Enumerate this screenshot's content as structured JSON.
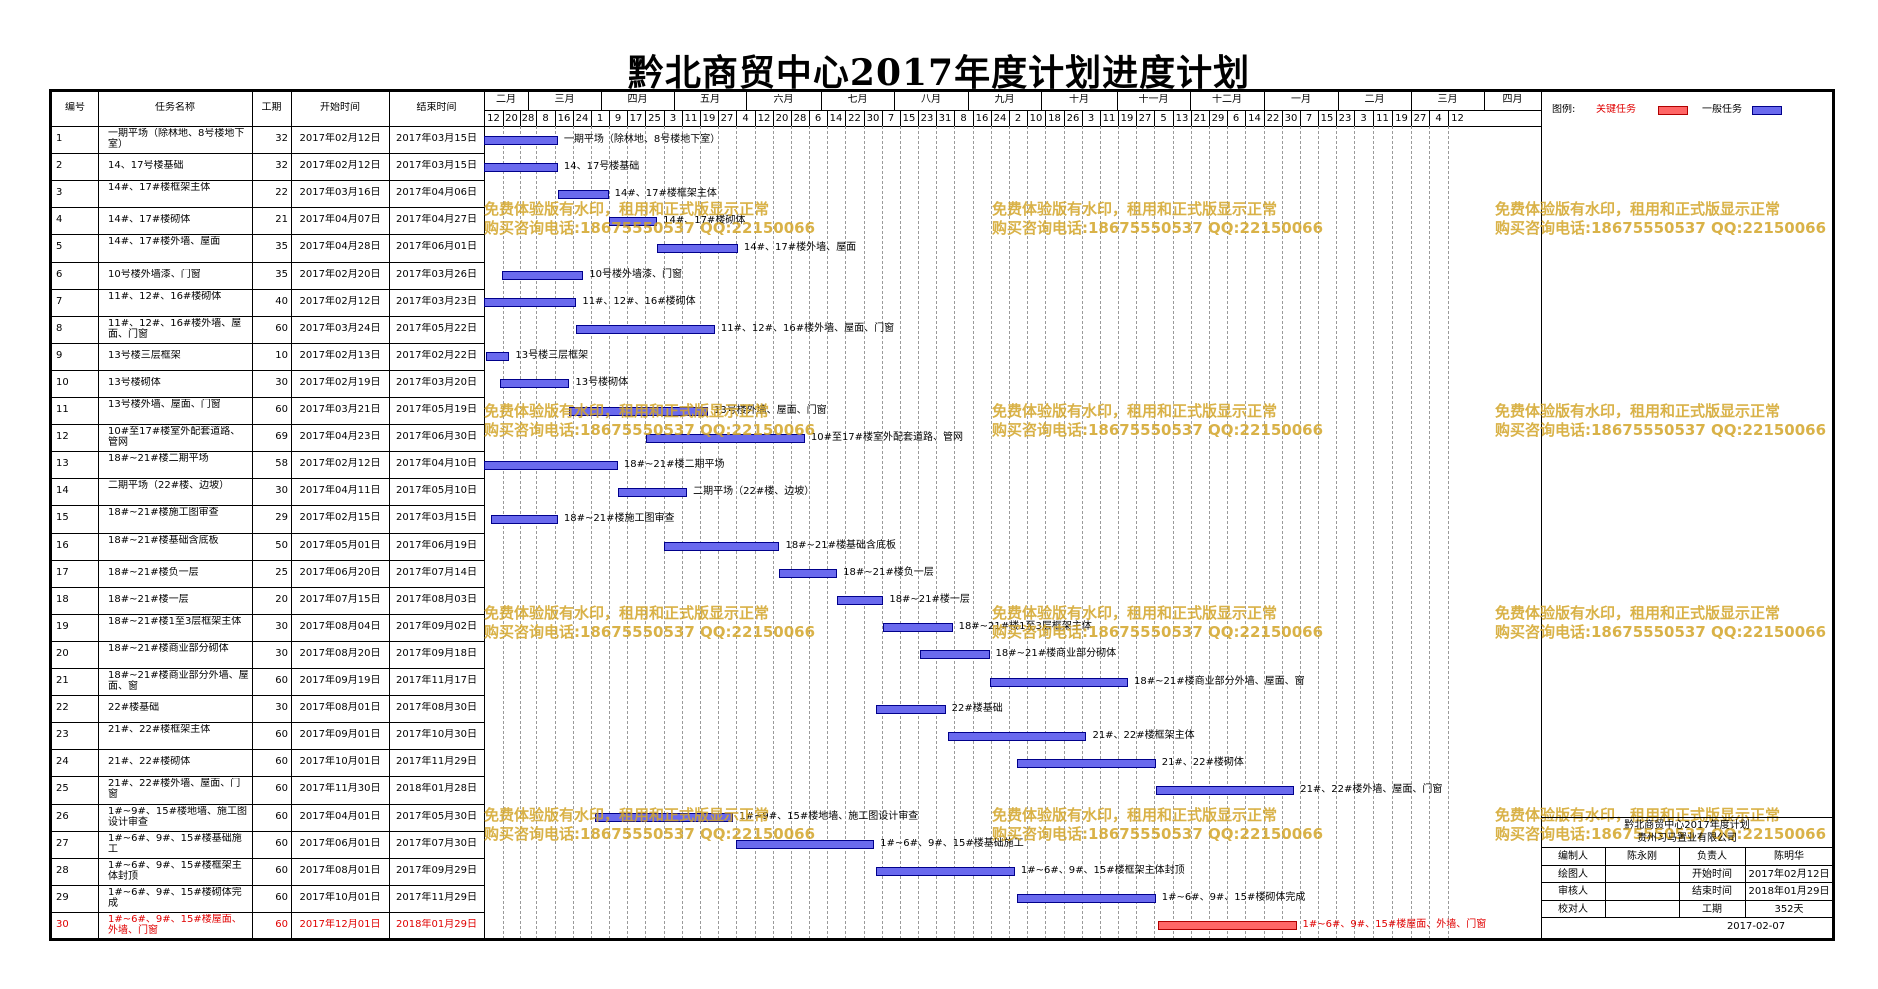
{
  "title": "黔北商贸中心2017年度计划进度计划",
  "table": {
    "headers": {
      "no": "编号",
      "name": "任务名称",
      "days": "工期",
      "start": "开始时间",
      "end": "结束时间"
    }
  },
  "timeline": {
    "months": [
      "二月",
      "三月",
      "四月",
      "五月",
      "六月",
      "七月",
      "八月",
      "九月",
      "十月",
      "十一月",
      "十二月",
      "一月",
      "二月",
      "三月",
      "四月"
    ],
    "days": [
      "12",
      "20",
      "28",
      "8",
      "16",
      "24",
      "1",
      "9",
      "17",
      "25",
      "3",
      "11",
      "19",
      "27",
      "4",
      "12",
      "20",
      "28",
      "6",
      "14",
      "22",
      "30",
      "7",
      "15",
      "23",
      "31",
      "8",
      "16",
      "24",
      "2",
      "10",
      "18",
      "26",
      "3",
      "11",
      "19",
      "27",
      "5",
      "13",
      "21",
      "29",
      "6",
      "14",
      "22",
      "30",
      "7",
      "15",
      "23",
      "3",
      "11",
      "19",
      "27",
      "4",
      "12"
    ]
  },
  "legend": {
    "label": "图例:",
    "critical": "关键任务",
    "normal": "一般任务",
    "critical_color": "#ff6666",
    "normal_color": "#6a6aee"
  },
  "watermark": {
    "line1": "免费体验版有水印，租用和正式版显示正常",
    "line2": "购买咨询电话:18675550537 QQ:22150066"
  },
  "title_block": {
    "project": "黔北商贸中心2017年度计划",
    "company": "贵州习马置业有限公司",
    "rows": [
      {
        "l1": "编制人",
        "v1": "陈永刚",
        "l2": "负责人",
        "v2": "陈明华"
      },
      {
        "l1": "绘图人",
        "v1": "",
        "l2": "开始时间",
        "v2": "2017年02月12日"
      },
      {
        "l1": "审核人",
        "v1": "",
        "l2": "结束时间",
        "v2": "2018年01月29日"
      },
      {
        "l1": "校对人",
        "v1": "",
        "l2": "工期",
        "v2": "352天"
      }
    ],
    "date": "2017-02-07"
  },
  "chart_data": {
    "type": "gantt",
    "title": "黔北商贸中心2017年度计划进度计划",
    "x_start": "2017-02-12",
    "tasks": [
      {
        "no": "1",
        "name": "一期平场（除林地、8号楼地下室）",
        "bar_label": "一期平场（除林地、8号楼地下室）",
        "days": 32,
        "start": "2017年02月12日",
        "end": "2017年03月15日",
        "critical": false
      },
      {
        "no": "2",
        "name": "14、17号楼基础",
        "bar_label": "14、17号楼基础",
        "days": 32,
        "start": "2017年02月12日",
        "end": "2017年03月15日",
        "critical": false
      },
      {
        "no": "3",
        "name": "14#、17#楼框架主体",
        "bar_label": "14#、17#楼框架主体",
        "days": 22,
        "start": "2017年03月16日",
        "end": "2017年04月06日",
        "critical": false
      },
      {
        "no": "4",
        "name": "14#、17#楼砌体",
        "bar_label": "14#、17#楼砌体",
        "days": 21,
        "start": "2017年04月07日",
        "end": "2017年04月27日",
        "critical": false
      },
      {
        "no": "5",
        "name": "14#、17#楼外墙、屋面",
        "bar_label": "14#、17#楼外墙、屋面",
        "days": 35,
        "start": "2017年04月28日",
        "end": "2017年06月01日",
        "critical": false
      },
      {
        "no": "6",
        "name": "10号楼外墙漆、门窗",
        "bar_label": "10号楼外墙漆、门窗",
        "days": 35,
        "start": "2017年02月20日",
        "end": "2017年03月26日",
        "critical": false
      },
      {
        "no": "7",
        "name": "11#、12#、16#楼砌体",
        "bar_label": "11#、12#、16#楼砌体",
        "days": 40,
        "start": "2017年02月12日",
        "end": "2017年03月23日",
        "critical": false
      },
      {
        "no": "8",
        "name": "11#、12#、16#楼外墙、屋面、门窗",
        "bar_label": "11#、12#、16#楼外墙、屋面、门窗",
        "days": 60,
        "start": "2017年03月24日",
        "end": "2017年05月22日",
        "critical": false
      },
      {
        "no": "9",
        "name": "13号楼三层框架",
        "bar_label": "13号楼三层框架",
        "days": 10,
        "start": "2017年02月13日",
        "end": "2017年02月22日",
        "critical": false
      },
      {
        "no": "10",
        "name": "13号楼砌体",
        "bar_label": "13号楼砌体",
        "days": 30,
        "start": "2017年02月19日",
        "end": "2017年03月20日",
        "critical": false
      },
      {
        "no": "11",
        "name": "13号楼外墙、屋面、门窗",
        "bar_label": "13号楼外墙、屋面、门窗",
        "days": 60,
        "start": "2017年03月21日",
        "end": "2017年05月19日",
        "critical": false
      },
      {
        "no": "12",
        "name": "10#至17#楼室外配套道路、管网",
        "bar_label": "10#至17#楼室外配套道路、管网",
        "days": 69,
        "start": "2017年04月23日",
        "end": "2017年06月30日",
        "critical": false
      },
      {
        "no": "13",
        "name": "18#~21#楼二期平场",
        "bar_label": "18#~21#楼二期平场",
        "days": 58,
        "start": "2017年02月12日",
        "end": "2017年04月10日",
        "critical": false
      },
      {
        "no": "14",
        "name": "二期平场（22#楼、边坡）",
        "bar_label": "二期平场（22#楼、边坡）",
        "days": 30,
        "start": "2017年04月11日",
        "end": "2017年05月10日",
        "critical": false
      },
      {
        "no": "15",
        "name": "18#~21#楼施工图审查",
        "bar_label": "18#~21#楼施工图审查",
        "days": 29,
        "start": "2017年02月15日",
        "end": "2017年03月15日",
        "critical": false
      },
      {
        "no": "16",
        "name": "18#~21#楼基础含底板",
        "bar_label": "18#~21#楼基础含底板",
        "days": 50,
        "start": "2017年05月01日",
        "end": "2017年06月19日",
        "critical": false
      },
      {
        "no": "17",
        "name": "18#~21#楼负一层",
        "bar_label": "18#~21#楼负一层",
        "days": 25,
        "start": "2017年06月20日",
        "end": "2017年07月14日",
        "critical": false
      },
      {
        "no": "18",
        "name": "18#~21#楼一层",
        "bar_label": "18#~21#楼一层",
        "days": 20,
        "start": "2017年07月15日",
        "end": "2017年08月03日",
        "critical": false
      },
      {
        "no": "19",
        "name": "18#~21#楼1至3层框架主体",
        "bar_label": "18#~21#楼1至3层框架主体",
        "days": 30,
        "start": "2017年08月04日",
        "end": "2017年09月02日",
        "critical": false
      },
      {
        "no": "20",
        "name": "18#~21#楼商业部分砌体",
        "bar_label": "18#~21#楼商业部分砌体",
        "days": 30,
        "start": "2017年08月20日",
        "end": "2017年09月18日",
        "critical": false
      },
      {
        "no": "21",
        "name": "18#~21#楼商业部分外墙、屋面、窗",
        "bar_label": "18#~21#楼商业部分外墙、屋面、窗",
        "days": 60,
        "start": "2017年09月19日",
        "end": "2017年11月17日",
        "critical": false
      },
      {
        "no": "22",
        "name": "22#楼基础",
        "bar_label": "22#楼基础",
        "days": 30,
        "start": "2017年08月01日",
        "end": "2017年08月30日",
        "critical": false
      },
      {
        "no": "23",
        "name": "21#、22#楼框架主体",
        "bar_label": "21#、22#楼框架主体",
        "days": 60,
        "start": "2017年09月01日",
        "end": "2017年10月30日",
        "critical": false
      },
      {
        "no": "24",
        "name": "21#、22#楼砌体",
        "bar_label": "21#、22#楼砌体",
        "days": 60,
        "start": "2017年10月01日",
        "end": "2017年11月29日",
        "critical": false
      },
      {
        "no": "25",
        "name": "21#、22#楼外墙、屋面、门窗",
        "bar_label": "21#、22#楼外墙、屋面、门窗",
        "days": 60,
        "start": "2017年11月30日",
        "end": "2018年01月28日",
        "critical": false
      },
      {
        "no": "26",
        "name": "1#~9#、15#楼地墙、施工图设计审查",
        "bar_label": "1#~9#、15#楼地墙、施工图设计审查",
        "days": 60,
        "start": "2017年04月01日",
        "end": "2017年05月30日",
        "critical": false
      },
      {
        "no": "27",
        "name": "1#~6#、9#、15#楼基础施工",
        "bar_label": "1#~6#、9#、15#楼基础施工",
        "days": 60,
        "start": "2017年06月01日",
        "end": "2017年07月30日",
        "critical": false
      },
      {
        "no": "28",
        "name": "1#~6#、9#、15#楼框架主体封顶",
        "bar_label": "1#~6#、9#、15#楼框架主体封顶",
        "days": 60,
        "start": "2017年08月01日",
        "end": "2017年09月29日",
        "critical": false
      },
      {
        "no": "29",
        "name": "1#~6#、9#、15#楼砌体完成",
        "bar_label": "1#~6#、9#、15#楼砌体完成",
        "days": 60,
        "start": "2017年10月01日",
        "end": "2017年11月29日",
        "critical": false
      },
      {
        "no": "30",
        "name": "1#~6#、9#、15#楼屋面、外墙、门窗",
        "bar_label": "1#~6#、9#、15#楼屋面、外墙、门窗",
        "days": 60,
        "start": "2017年12月01日",
        "end": "2018年01月29日",
        "critical": true
      }
    ]
  }
}
